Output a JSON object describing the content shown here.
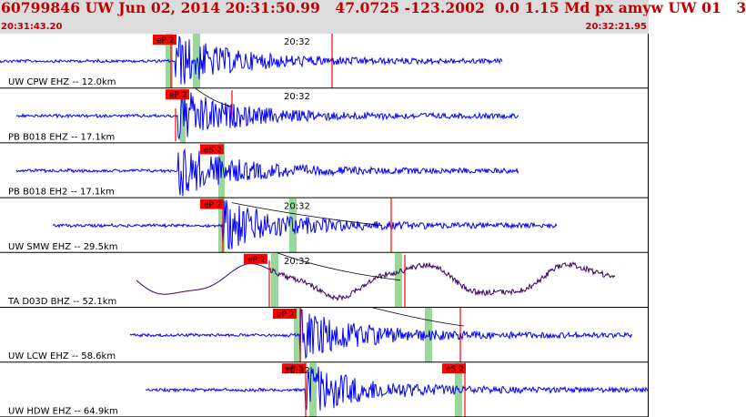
{
  "header": {
    "title": "60799846 UW Jun 02, 2014 20:31:50.99   47.0725 -123.2002  0.0 1.15 Md px amyw UW 01   3",
    "start_time": "20:31:43.20",
    "end_time": "20:32:21.95"
  },
  "colors": {
    "header_bg": "#dcdcdc",
    "header_text": "#c00000",
    "trace": "#0000ff",
    "trace_lowfreq": "#3a0063",
    "pick_bg": "#ff0000",
    "window_green": "#9ad79a",
    "theory_curve": "#000000"
  },
  "traces": [
    {
      "label": "UW CPW EHZ -- 12.0km",
      "time_label": "20:32",
      "picks": [
        {
          "label": "eP 2"
        }
      ]
    },
    {
      "label": "PB B018 EHZ -- 17.1km",
      "time_label": "20:32",
      "picks": [
        {
          "label": "eP 2"
        }
      ]
    },
    {
      "label": "PB B018 EH2 -- 17.1km",
      "time_label": "",
      "picks": [
        {
          "label": "eS 2"
        }
      ]
    },
    {
      "label": "UW SMW EHZ -- 29.5km",
      "time_label": "20:32",
      "picks": [
        {
          "label": "eP 2"
        }
      ]
    },
    {
      "label": "TA D03D BHZ -- 52.1km",
      "time_label": "20:32",
      "picks": [
        {
          "label": "eP 2"
        }
      ]
    },
    {
      "label": "UW LCW EHZ -- 58.6km",
      "time_label": "",
      "picks": [
        {
          "label": "eP 2"
        }
      ]
    },
    {
      "label": "UW HDW EHZ -- 64.9km",
      "time_label": "20:32",
      "picks": [
        {
          "label": "eP 2"
        },
        {
          "label": "eS 2"
        }
      ]
    }
  ]
}
